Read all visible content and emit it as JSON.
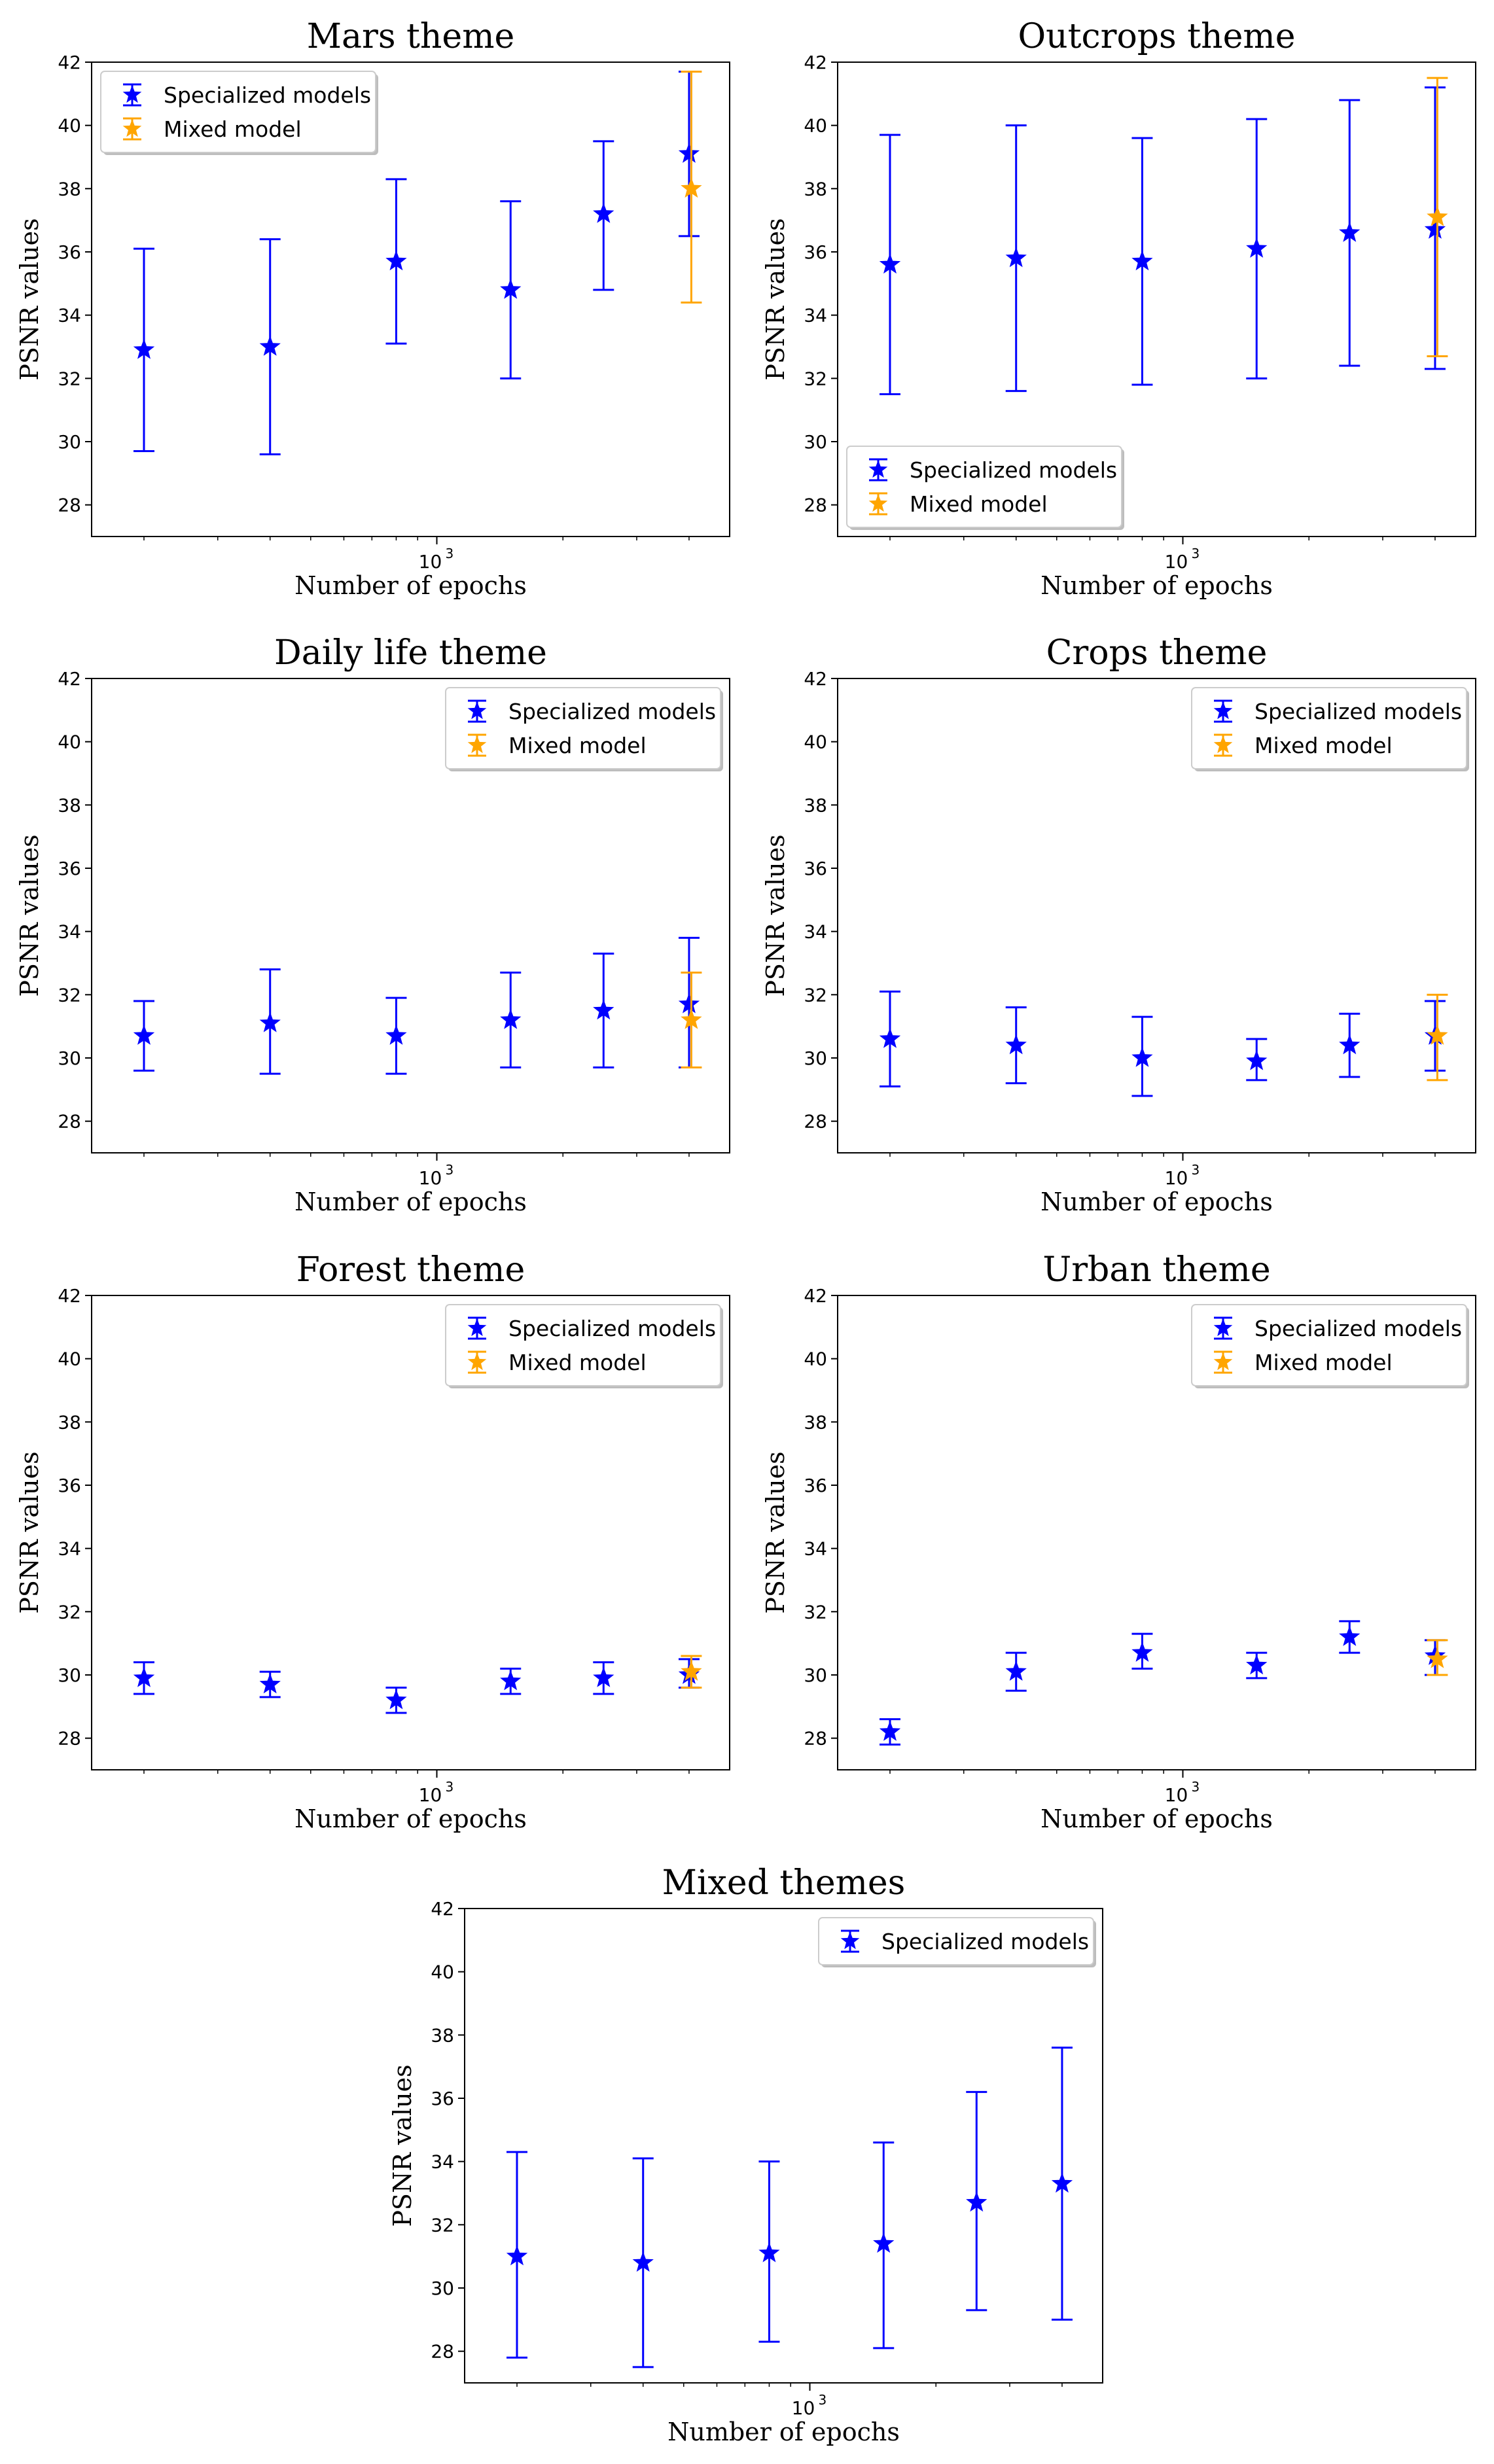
{
  "chart_data": [
    {
      "type": "scatter",
      "title": "Mars theme",
      "xlabel": "Number of epochs",
      "ylabel": "PSNR values",
      "ylim": [
        27,
        42
      ],
      "xscale": "log",
      "xlim": [
        150,
        5000
      ],
      "x_tick_label": {
        "base": "10",
        "exp": "3"
      },
      "yticks": [
        28,
        30,
        32,
        34,
        36,
        38,
        40,
        42
      ],
      "legend_loc": "upper-left",
      "legend": [
        "Specialized models",
        "Mixed model"
      ],
      "series": [
        {
          "name": "Specialized models",
          "color": "#0000ff",
          "x": [
            200,
            400,
            800,
            1500,
            2500,
            4000
          ],
          "y": [
            32.9,
            33.0,
            35.7,
            34.8,
            37.2,
            39.1
          ],
          "yerr_low": [
            29.7,
            29.6,
            33.1,
            32.0,
            34.8,
            36.5
          ],
          "yerr_high": [
            36.1,
            36.4,
            38.3,
            37.6,
            39.5,
            41.7
          ]
        },
        {
          "name": "Mixed model",
          "color": "#ffa500",
          "x": [
            4050
          ],
          "y": [
            38.0
          ],
          "yerr_low": [
            34.4
          ],
          "yerr_high": [
            41.7
          ]
        }
      ]
    },
    {
      "type": "scatter",
      "title": "Outcrops theme",
      "xlabel": "Number of epochs",
      "ylabel": "PSNR values",
      "ylim": [
        27,
        42
      ],
      "xscale": "log",
      "xlim": [
        150,
        5000
      ],
      "x_tick_label": {
        "base": "10",
        "exp": "3"
      },
      "yticks": [
        28,
        30,
        32,
        34,
        36,
        38,
        40,
        42
      ],
      "legend_loc": "lower-left",
      "legend": [
        "Specialized models",
        "Mixed model"
      ],
      "series": [
        {
          "name": "Specialized models",
          "color": "#0000ff",
          "x": [
            200,
            400,
            800,
            1500,
            2500,
            4000
          ],
          "y": [
            35.6,
            35.8,
            35.7,
            36.1,
            36.6,
            36.7
          ],
          "yerr_low": [
            31.5,
            31.6,
            31.8,
            32.0,
            32.4,
            32.3
          ],
          "yerr_high": [
            39.7,
            40.0,
            39.6,
            40.2,
            40.8,
            41.2
          ]
        },
        {
          "name": "Mixed model",
          "color": "#ffa500",
          "x": [
            4050
          ],
          "y": [
            37.1
          ],
          "yerr_low": [
            32.7
          ],
          "yerr_high": [
            41.5
          ]
        }
      ]
    },
    {
      "type": "scatter",
      "title": "Daily life theme",
      "xlabel": "Number of epochs",
      "ylabel": "PSNR values",
      "ylim": [
        27,
        42
      ],
      "xscale": "log",
      "xlim": [
        150,
        5000
      ],
      "x_tick_label": {
        "base": "10",
        "exp": "3"
      },
      "yticks": [
        28,
        30,
        32,
        34,
        36,
        38,
        40,
        42
      ],
      "legend_loc": "upper-right",
      "legend": [
        "Specialized models",
        "Mixed model"
      ],
      "series": [
        {
          "name": "Specialized models",
          "color": "#0000ff",
          "x": [
            200,
            400,
            800,
            1500,
            2500,
            4000
          ],
          "y": [
            30.7,
            31.1,
            30.7,
            31.2,
            31.5,
            31.7
          ],
          "yerr_low": [
            29.6,
            29.5,
            29.5,
            29.7,
            29.7,
            29.7
          ],
          "yerr_high": [
            31.8,
            32.8,
            31.9,
            32.7,
            33.3,
            33.8
          ]
        },
        {
          "name": "Mixed model",
          "color": "#ffa500",
          "x": [
            4050
          ],
          "y": [
            31.2
          ],
          "yerr_low": [
            29.7
          ],
          "yerr_high": [
            32.7
          ]
        }
      ]
    },
    {
      "type": "scatter",
      "title": "Crops theme",
      "xlabel": "Number of epochs",
      "ylabel": "PSNR values",
      "ylim": [
        27,
        42
      ],
      "xscale": "log",
      "xlim": [
        150,
        5000
      ],
      "x_tick_label": {
        "base": "10",
        "exp": "3"
      },
      "yticks": [
        28,
        30,
        32,
        34,
        36,
        38,
        40,
        42
      ],
      "legend_loc": "upper-right",
      "legend": [
        "Specialized models",
        "Mixed model"
      ],
      "series": [
        {
          "name": "Specialized models",
          "color": "#0000ff",
          "x": [
            200,
            400,
            800,
            1500,
            2500,
            4000
          ],
          "y": [
            30.6,
            30.4,
            30.0,
            29.9,
            30.4,
            30.7
          ],
          "yerr_low": [
            29.1,
            29.2,
            28.8,
            29.3,
            29.4,
            29.6
          ],
          "yerr_high": [
            32.1,
            31.6,
            31.3,
            30.6,
            31.4,
            31.8
          ]
        },
        {
          "name": "Mixed model",
          "color": "#ffa500",
          "x": [
            4050
          ],
          "y": [
            30.7
          ],
          "yerr_low": [
            29.3
          ],
          "yerr_high": [
            32.0
          ]
        }
      ]
    },
    {
      "type": "scatter",
      "title": "Forest theme",
      "xlabel": "Number of epochs",
      "ylabel": "PSNR values",
      "ylim": [
        27,
        42
      ],
      "xscale": "log",
      "xlim": [
        150,
        5000
      ],
      "x_tick_label": {
        "base": "10",
        "exp": "3"
      },
      "yticks": [
        28,
        30,
        32,
        34,
        36,
        38,
        40,
        42
      ],
      "legend_loc": "upper-right",
      "legend": [
        "Specialized models",
        "Mixed model"
      ],
      "series": [
        {
          "name": "Specialized models",
          "color": "#0000ff",
          "x": [
            200,
            400,
            800,
            1500,
            2500,
            4000
          ],
          "y": [
            29.9,
            29.7,
            29.2,
            29.8,
            29.9,
            30.0
          ],
          "yerr_low": [
            29.4,
            29.3,
            28.8,
            29.4,
            29.4,
            29.6
          ],
          "yerr_high": [
            30.4,
            30.1,
            29.6,
            30.2,
            30.4,
            30.5
          ]
        },
        {
          "name": "Mixed model",
          "color": "#ffa500",
          "x": [
            4050
          ],
          "y": [
            30.1
          ],
          "yerr_low": [
            29.6
          ],
          "yerr_high": [
            30.6
          ]
        }
      ]
    },
    {
      "type": "scatter",
      "title": "Urban theme",
      "xlabel": "Number of epochs",
      "ylabel": "PSNR values",
      "ylim": [
        27,
        42
      ],
      "xscale": "log",
      "xlim": [
        150,
        5000
      ],
      "x_tick_label": {
        "base": "10",
        "exp": "3"
      },
      "yticks": [
        28,
        30,
        32,
        34,
        36,
        38,
        40,
        42
      ],
      "legend_loc": "upper-right",
      "legend": [
        "Specialized models",
        "Mixed model"
      ],
      "series": [
        {
          "name": "Specialized models",
          "color": "#0000ff",
          "x": [
            200,
            400,
            800,
            1500,
            2500,
            4000
          ],
          "y": [
            28.2,
            30.1,
            30.7,
            30.3,
            31.2,
            30.6
          ],
          "yerr_low": [
            27.8,
            29.5,
            30.2,
            29.9,
            30.7,
            30.0
          ],
          "yerr_high": [
            28.6,
            30.7,
            31.3,
            30.7,
            31.7,
            31.1
          ]
        },
        {
          "name": "Mixed model",
          "color": "#ffa500",
          "x": [
            4050
          ],
          "y": [
            30.5
          ],
          "yerr_low": [
            30.0
          ],
          "yerr_high": [
            31.1
          ]
        }
      ]
    },
    {
      "type": "scatter",
      "title": "Mixed themes",
      "xlabel": "Number of epochs",
      "ylabel": "PSNR values",
      "ylim": [
        27,
        42
      ],
      "xscale": "log",
      "xlim": [
        150,
        5000
      ],
      "x_tick_label": {
        "base": "10",
        "exp": "3"
      },
      "yticks": [
        28,
        30,
        32,
        34,
        36,
        38,
        40,
        42
      ],
      "legend_loc": "upper-right",
      "legend": [
        "Specialized models"
      ],
      "series": [
        {
          "name": "Specialized models",
          "color": "#0000ff",
          "x": [
            200,
            400,
            800,
            1500,
            2500,
            4000
          ],
          "y": [
            31.0,
            30.8,
            31.1,
            31.4,
            32.7,
            33.3
          ],
          "yerr_low": [
            27.8,
            27.5,
            28.3,
            28.1,
            29.3,
            29.0
          ],
          "yerr_high": [
            34.3,
            34.1,
            34.0,
            34.6,
            36.2,
            37.6
          ]
        }
      ]
    }
  ]
}
